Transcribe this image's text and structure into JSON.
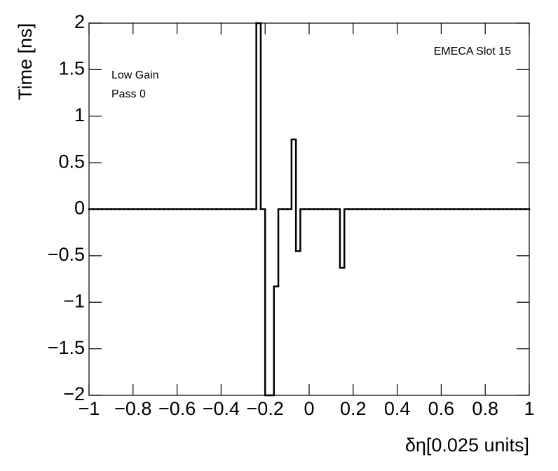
{
  "chart_data": {
    "type": "histogram",
    "title": "EMECA Slot 15",
    "annotations": [
      "Low Gain",
      "Pass 0"
    ],
    "x_label": "δη[0.025 units]",
    "y_label": "Time [ns]",
    "color": "#000000",
    "bins": [
      -1,
      -0.98,
      -0.96,
      -0.94,
      -0.92,
      -0.9,
      -0.88,
      -0.86,
      -0.84,
      -0.82,
      -0.8,
      -0.78,
      -0.76,
      -0.74,
      -0.72,
      -0.7,
      -0.68,
      -0.66,
      -0.64,
      -0.62,
      -0.6,
      -0.58,
      -0.56,
      -0.54,
      -0.52,
      -0.5,
      -0.48,
      -0.46,
      -0.44,
      -0.42,
      -0.4,
      -0.38,
      -0.36,
      -0.34,
      -0.32,
      -0.3,
      -0.28,
      -0.26,
      -0.24,
      -0.22,
      -0.2,
      -0.18,
      -0.16,
      -0.14,
      -0.12,
      -0.1,
      -0.08,
      -0.06,
      -0.04,
      -0.02,
      0,
      0.02,
      0.04,
      0.06,
      0.08,
      0.1,
      0.12,
      0.14,
      0.16,
      0.18,
      0.2,
      0.22,
      0.24,
      0.26,
      0.28,
      0.3,
      0.32,
      0.34,
      0.36,
      0.38,
      0.4,
      0.42,
      0.44,
      0.46,
      0.48,
      0.5,
      0.52,
      0.54,
      0.56,
      0.58,
      0.6,
      0.62,
      0.64,
      0.66,
      0.68,
      0.7,
      0.72,
      0.74,
      0.76,
      0.78,
      0.8,
      0.82,
      0.84,
      0.86,
      0.88,
      0.9,
      0.92,
      0.94,
      0.96,
      0.98,
      1
    ],
    "values": [
      0,
      0,
      0,
      0,
      0,
      0,
      0,
      0,
      0,
      0,
      0,
      0,
      0,
      0,
      0,
      0,
      0,
      0,
      0,
      0,
      0,
      0,
      0,
      0,
      0,
      0,
      0,
      0,
      0,
      0,
      0,
      0,
      0,
      0,
      0,
      0,
      0,
      0,
      2,
      0,
      -2,
      -2,
      -0.83,
      0,
      0,
      0,
      0.75,
      -0.45,
      0,
      0,
      0,
      0,
      0,
      0,
      0,
      0,
      0,
      -0.63,
      0,
      0,
      0,
      0,
      0,
      0,
      0,
      0,
      0,
      0,
      0,
      0,
      0,
      0,
      0,
      0,
      0,
      0,
      0,
      0,
      0,
      0,
      0,
      0,
      0,
      0,
      0,
      0,
      0,
      0,
      0,
      0,
      0,
      0,
      0,
      0,
      0,
      0,
      0,
      0,
      0,
      0
    ],
    "xlim": [
      -1,
      1
    ],
    "ylim": [
      -2,
      2
    ],
    "xticks": [
      {
        "value": -1,
        "label": "−1"
      },
      {
        "value": -0.8,
        "label": "−0.8"
      },
      {
        "value": -0.6,
        "label": "−0.6"
      },
      {
        "value": -0.4,
        "label": "−0.4"
      },
      {
        "value": -0.2,
        "label": "−0.2"
      },
      0,
      0.2,
      0.4,
      0.6,
      0.8,
      1
    ],
    "yticks": [
      {
        "value": -2,
        "label": "−2"
      },
      {
        "value": -1.5,
        "label": "−1.5"
      },
      {
        "value": -1,
        "label": "−1"
      },
      {
        "value": -0.5,
        "label": "−0.5"
      },
      0,
      0.5,
      1,
      1.5,
      2
    ]
  }
}
